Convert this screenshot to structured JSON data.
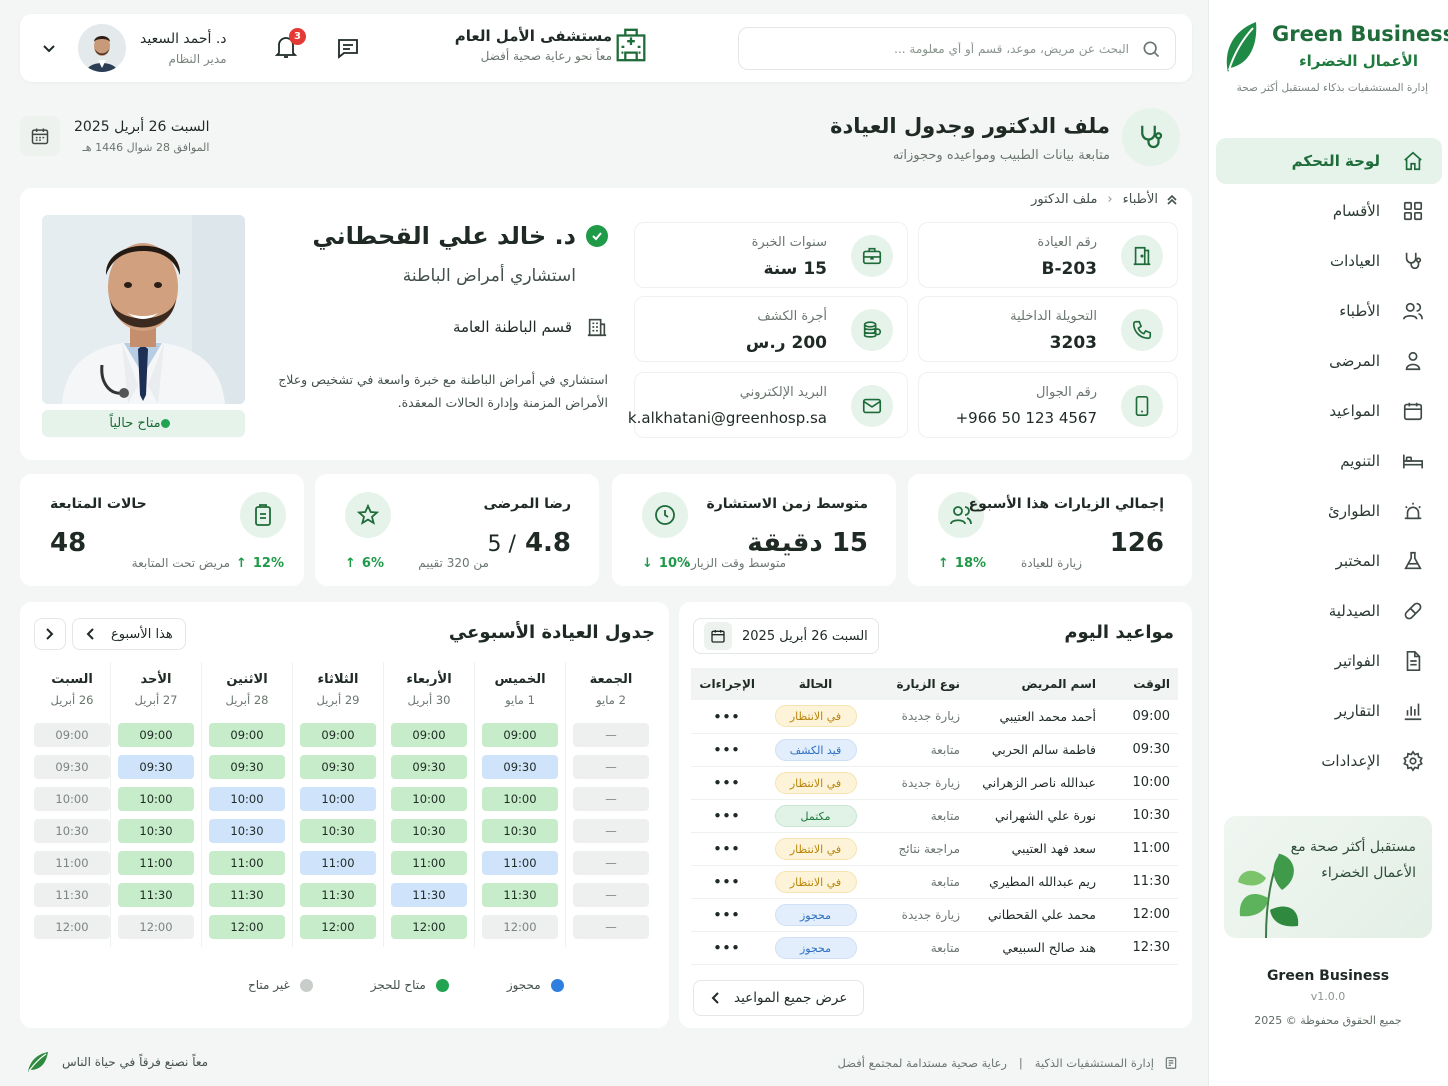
{
  "brand": {
    "name": "Green Business",
    "name_ar": "الأعمال الخضراء",
    "tagline": "إدارة المستشفيات بذكاء لمستقبل أكثر صحة"
  },
  "nav": [
    {
      "label": "لوحة التحكم",
      "icon": "home-icon",
      "active": true
    },
    {
      "label": "الأقسام",
      "icon": "grid-icon"
    },
    {
      "label": "العيادات",
      "icon": "stethoscope-icon"
    },
    {
      "label": "الأطباء",
      "icon": "users-icon"
    },
    {
      "label": "المرضى",
      "icon": "user-icon"
    },
    {
      "label": "المواعيد",
      "icon": "calendar-icon"
    },
    {
      "label": "التنويم",
      "icon": "bed-icon"
    },
    {
      "label": "الطوارئ",
      "icon": "alarm-icon"
    },
    {
      "label": "المختبر",
      "icon": "flask-icon"
    },
    {
      "label": "الصيدلية",
      "icon": "pill-icon"
    },
    {
      "label": "الفواتير",
      "icon": "invoice-icon"
    },
    {
      "label": "التقارير",
      "icon": "chart-icon"
    },
    {
      "label": "الإعدادات",
      "icon": "gear-icon"
    }
  ],
  "promo": {
    "text": "مستقبل أكثر صحة مع الأعمال الخضراء"
  },
  "sidebar_footer": {
    "name": "Green Business",
    "version": "v1.0.0",
    "copyright": "جميع الحقوق محفوظة © 2025"
  },
  "topbar": {
    "search_placeholder": "البحث عن مريض، موعد، قسم أو أي معلومة ...",
    "hospital_name": "مستشفى الأمل العام",
    "hospital_tagline": "معاً نحو رعاية صحية أفضل",
    "notifications_count": "3",
    "user_name": "د. أحمد السعيد",
    "user_role": "مدير النظام"
  },
  "page": {
    "title": "ملف الدكتور وجدول العيادة",
    "subtitle": "متابعة بيانات الطبيب ومواعيده وحجوزاته",
    "date": "السبت 26 أبريل 2025",
    "hijri": "الموافق 28 شوال 1446 هـ"
  },
  "breadcrumb": {
    "root": "الأطباء",
    "current": "ملف الدكتور"
  },
  "doctor": {
    "name": "د. خالد علي القحطاني",
    "specialty": "استشاري أمراض الباطنة",
    "department": "قسم الباطنة العامة",
    "bio": "استشاري في أمراض الباطنة مع خبرة واسعة في تشخيص وعلاج الأمراض المزمنة وإدارة الحالات المعقدة.",
    "status": "متاح حالياً"
  },
  "info": {
    "clinic_label": "رقم العيادة",
    "clinic_value": "B-203",
    "exp_label": "سنوات الخبرة",
    "exp_value": "15 سنة",
    "ext_label": "التحويلة الداخلية",
    "ext_value": "3203",
    "fee_label": "أجرة الكشف",
    "fee_value": "200 ر.س",
    "mobile_label": "رقم الجوال",
    "mobile_value": "+966 50 123 4567",
    "email_label": "البريد الإلكتروني",
    "email_value": "k.alkhatani@greenhosp.sa"
  },
  "stats": [
    {
      "label": "إجمالي الزيارات هذا الأسبوع",
      "value": "126",
      "trend": "18%",
      "sub": "زيارة للعيادة",
      "icon": "users-icon"
    },
    {
      "label": "متوسط زمن الاستشارة",
      "value": "15 دقيقة",
      "trend": "10%",
      "sub": "متوسط وقت الزيارة",
      "icon": "clock-icon"
    },
    {
      "label": "رضا المرضى",
      "value_main": "4.8",
      "value_sep": "/ 5",
      "trend": "6%",
      "sub": "من 320 تقييم",
      "icon": "star-icon"
    },
    {
      "label": "حالات المتابعة",
      "value": "48",
      "trend": "12%",
      "sub": "مريض تحت المتابعة",
      "icon": "clipboard-icon"
    }
  ],
  "appointments": {
    "title": "مواعيد اليوم",
    "date": "السبت 26 أبريل 2025",
    "columns": [
      "الوقت",
      "اسم المريض",
      "نوع الزيارة",
      "الحالة",
      "الإجراءات"
    ],
    "rows": [
      {
        "time": "09:00",
        "patient": "أحمد محمد العتيبي",
        "type": "زيارة جديدة",
        "status": "في الانتظار",
        "status_kind": "wait"
      },
      {
        "time": "09:30",
        "patient": "فاطمة سالم الحربي",
        "type": "متابعة",
        "status": "قيد الكشف",
        "status_kind": "exam"
      },
      {
        "time": "10:00",
        "patient": "عبدالله ناصر الزهراني",
        "type": "زيارة جديدة",
        "status": "في الانتظار",
        "status_kind": "wait"
      },
      {
        "time": "10:30",
        "patient": "نورة علي الشهراني",
        "type": "متابعة",
        "status": "مكتمل",
        "status_kind": "done"
      },
      {
        "time": "11:00",
        "patient": "سعد فهد العتيبي",
        "type": "مراجعة نتائج",
        "status": "في الانتظار",
        "status_kind": "wait"
      },
      {
        "time": "11:30",
        "patient": "ريم عبدالله المطيري",
        "type": "متابعة",
        "status": "في الانتظار",
        "status_kind": "wait"
      },
      {
        "time": "12:00",
        "patient": "محمد علي القحطاني",
        "type": "زيارة جديدة",
        "status": "محجوز",
        "status_kind": "booked"
      },
      {
        "time": "12:30",
        "patient": "هند صالح السبيعي",
        "type": "متابعة",
        "status": "محجوز",
        "status_kind": "booked"
      }
    ],
    "actions_glyph": "•••",
    "view_all": "عرض جميع المواعيد"
  },
  "schedule": {
    "title": "جدول العيادة الأسبوعي",
    "week_label": "هذا الأسبوع",
    "days": [
      {
        "day": "السبت",
        "date": "26 أبريل",
        "slots": [
          [
            "09:00",
            "u"
          ],
          [
            "09:30",
            "u"
          ],
          [
            "10:00",
            "u"
          ],
          [
            "10:30",
            "u"
          ],
          [
            "11:00",
            "u"
          ],
          [
            "11:30",
            "u"
          ],
          [
            "12:00",
            "u"
          ]
        ]
      },
      {
        "day": "الأحد",
        "date": "27 أبريل",
        "slots": [
          [
            "09:00",
            "a"
          ],
          [
            "09:30",
            "b"
          ],
          [
            "10:00",
            "a"
          ],
          [
            "10:30",
            "a"
          ],
          [
            "11:00",
            "a"
          ],
          [
            "11:30",
            "a"
          ],
          [
            "12:00",
            "u"
          ]
        ]
      },
      {
        "day": "الاثنين",
        "date": "28 أبريل",
        "slots": [
          [
            "09:00",
            "a"
          ],
          [
            "09:30",
            "a"
          ],
          [
            "10:00",
            "b"
          ],
          [
            "10:30",
            "b"
          ],
          [
            "11:00",
            "a"
          ],
          [
            "11:30",
            "a"
          ],
          [
            "12:00",
            "a"
          ]
        ]
      },
      {
        "day": "الثلاثاء",
        "date": "29 أبريل",
        "slots": [
          [
            "09:00",
            "a"
          ],
          [
            "09:30",
            "a"
          ],
          [
            "10:00",
            "b"
          ],
          [
            "10:30",
            "a"
          ],
          [
            "11:00",
            "b"
          ],
          [
            "11:30",
            "a"
          ],
          [
            "12:00",
            "a"
          ]
        ]
      },
      {
        "day": "الأربعاء",
        "date": "30 أبريل",
        "slots": [
          [
            "09:00",
            "a"
          ],
          [
            "09:30",
            "a"
          ],
          [
            "10:00",
            "a"
          ],
          [
            "10:30",
            "a"
          ],
          [
            "11:00",
            "a"
          ],
          [
            "11:30",
            "b"
          ],
          [
            "12:00",
            "a"
          ]
        ]
      },
      {
        "day": "الخميس",
        "date": "1 مايو",
        "slots": [
          [
            "09:00",
            "a"
          ],
          [
            "09:30",
            "b"
          ],
          [
            "10:00",
            "a"
          ],
          [
            "10:30",
            "a"
          ],
          [
            "11:00",
            "b"
          ],
          [
            "11:30",
            "a"
          ],
          [
            "12:00",
            "u"
          ]
        ]
      },
      {
        "day": "الجمعة",
        "date": "2 مايو",
        "slots": [
          [
            "—",
            "u"
          ],
          [
            "—",
            "u"
          ],
          [
            "—",
            "u"
          ],
          [
            "—",
            "u"
          ],
          [
            "—",
            "u"
          ],
          [
            "—",
            "u"
          ],
          [
            "—",
            "u"
          ]
        ]
      }
    ],
    "legend": [
      {
        "label": "محجوز",
        "color": "#2f7fe0"
      },
      {
        "label": "متاح للحجز",
        "color": "#22a352"
      },
      {
        "label": "غير متاح",
        "color": "#c9cdca"
      }
    ]
  },
  "footer": {
    "left": "إدارة المستشفيات الذكية",
    "mid": "رعاية صحية مستدامة لمجتمع أفضل",
    "right": "معاً نصنع فرقاً في حياة الناس"
  },
  "colors": {
    "brand": "#1f6b3a",
    "accent_bg": "#e6f3ea",
    "available": "#c6ecc9",
    "booked": "#cfe3fb",
    "unavailable": "#eef0ef"
  }
}
